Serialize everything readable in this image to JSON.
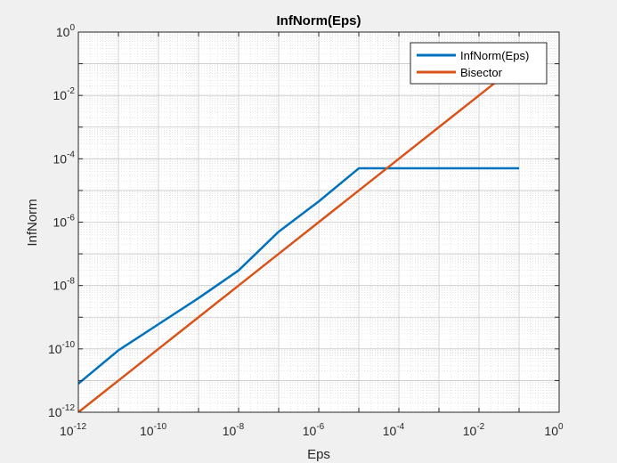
{
  "chart_data": {
    "type": "line",
    "title": "InfNorm(Eps)",
    "xlabel": "Eps",
    "ylabel": "InfNorm",
    "x_scale": "log",
    "y_scale": "log",
    "xlim": [
      1e-12,
      1
    ],
    "ylim": [
      1e-12,
      1
    ],
    "grid": true,
    "minor_grid": true,
    "legend_position": "top-right",
    "x_ticks": [
      {
        "value": 1e-12,
        "base": "10",
        "exp": "-12"
      },
      {
        "value": 1e-10,
        "base": "10",
        "exp": "-10"
      },
      {
        "value": 1e-08,
        "base": "10",
        "exp": "-8"
      },
      {
        "value": 1e-06,
        "base": "10",
        "exp": "-6"
      },
      {
        "value": 0.0001,
        "base": "10",
        "exp": "-4"
      },
      {
        "value": 0.01,
        "base": "10",
        "exp": "-2"
      },
      {
        "value": 1,
        "base": "10",
        "exp": "0"
      }
    ],
    "y_ticks": [
      {
        "value": 1e-12,
        "base": "10",
        "exp": "-12"
      },
      {
        "value": 1e-10,
        "base": "10",
        "exp": "-10"
      },
      {
        "value": 1e-08,
        "base": "10",
        "exp": "-8"
      },
      {
        "value": 1e-06,
        "base": "10",
        "exp": "-6"
      },
      {
        "value": 0.0001,
        "base": "10",
        "exp": "-4"
      },
      {
        "value": 0.01,
        "base": "10",
        "exp": "-2"
      },
      {
        "value": 1,
        "base": "10",
        "exp": "0"
      }
    ],
    "series": [
      {
        "name": "InfNorm(Eps)",
        "color": "#0072bd",
        "x": [
          1e-12,
          1e-11,
          1e-10,
          1e-09,
          1e-08,
          1e-07,
          1e-06,
          1e-05,
          0.0001,
          0.001,
          0.01,
          0.1
        ],
        "y": [
          8e-12,
          9e-11,
          6e-10,
          4e-09,
          3e-08,
          5e-07,
          4.5e-06,
          5e-05,
          5e-05,
          5e-05,
          5e-05,
          5e-05
        ]
      },
      {
        "name": "Bisector",
        "color": "#d95319",
        "x": [
          1e-12,
          1e-11,
          1e-10,
          1e-09,
          1e-08,
          1e-07,
          1e-06,
          1e-05,
          0.0001,
          0.001,
          0.01,
          0.1
        ],
        "y": [
          1e-12,
          1e-11,
          1e-10,
          1e-09,
          1e-08,
          1e-07,
          1e-06,
          1e-05,
          0.0001,
          0.001,
          0.01,
          0.1
        ]
      }
    ]
  }
}
